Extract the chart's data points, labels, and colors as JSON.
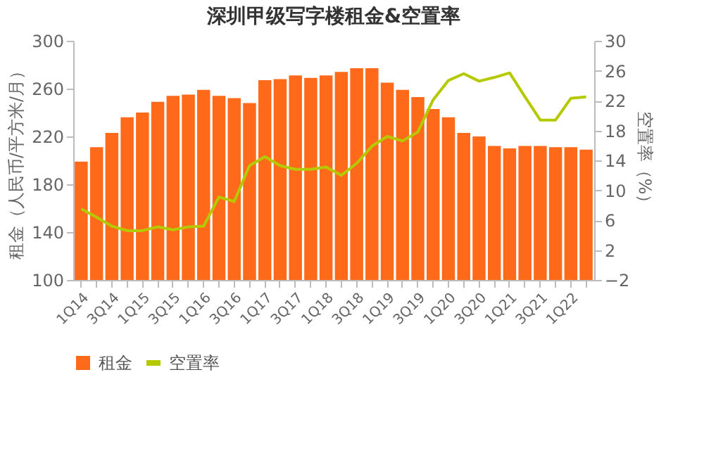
{
  "chart_data": {
    "type": "bar",
    "title": "深圳甲级写字楼租金&空置率",
    "categories": [
      "1Q14",
      null,
      "3Q14",
      null,
      "1Q15",
      null,
      "3Q15",
      null,
      "1Q16",
      null,
      "3Q16",
      null,
      "1Q17",
      null,
      "3Q17",
      null,
      "1Q18",
      null,
      "3Q18",
      null,
      "1Q19",
      null,
      "3Q19",
      null,
      "1Q20",
      null,
      "3Q20",
      null,
      "1Q21",
      null,
      "3Q21",
      null,
      "1Q22",
      null
    ],
    "ylabel": "租金（人民币/平方米/月）",
    "y2label": "空置率（%）",
    "series": [
      {
        "name": "租金",
        "color": "#ff6a1a",
        "values": [
          199,
          211,
          223,
          236,
          240,
          249,
          254,
          255,
          259,
          254,
          252,
          248,
          267,
          268,
          271,
          269,
          271,
          274,
          277,
          277,
          265,
          259,
          253,
          243,
          236,
          223,
          220,
          212,
          210,
          212,
          212,
          211,
          211,
          209
        ]
      },
      {
        "name": "空置率",
        "type": "line",
        "axis": "y2",
        "color": "#b5c900",
        "values": [
          7.5,
          6.4,
          5.2,
          4.6,
          4.6,
          5.1,
          4.7,
          5.1,
          5.2,
          9.1,
          8.5,
          13.3,
          14.5,
          13.3,
          12.8,
          12.8,
          13.1,
          12.0,
          13.6,
          15.9,
          17.2,
          16.6,
          17.8,
          22.1,
          24.7,
          25.6,
          24.6,
          25.1,
          25.7,
          22.5,
          19.4,
          19.4,
          22.3,
          22.5
        ]
      }
    ],
    "ylim": [
      100,
      300
    ],
    "yticks": [
      100,
      140,
      180,
      220,
      260,
      300
    ],
    "y2lim": [
      -2,
      30
    ],
    "y2ticks": [
      -2,
      2,
      6,
      10,
      14,
      18,
      22,
      26,
      30
    ],
    "grid": false,
    "legend": "bottom",
    "marker": "none",
    "line_style": "solid"
  }
}
